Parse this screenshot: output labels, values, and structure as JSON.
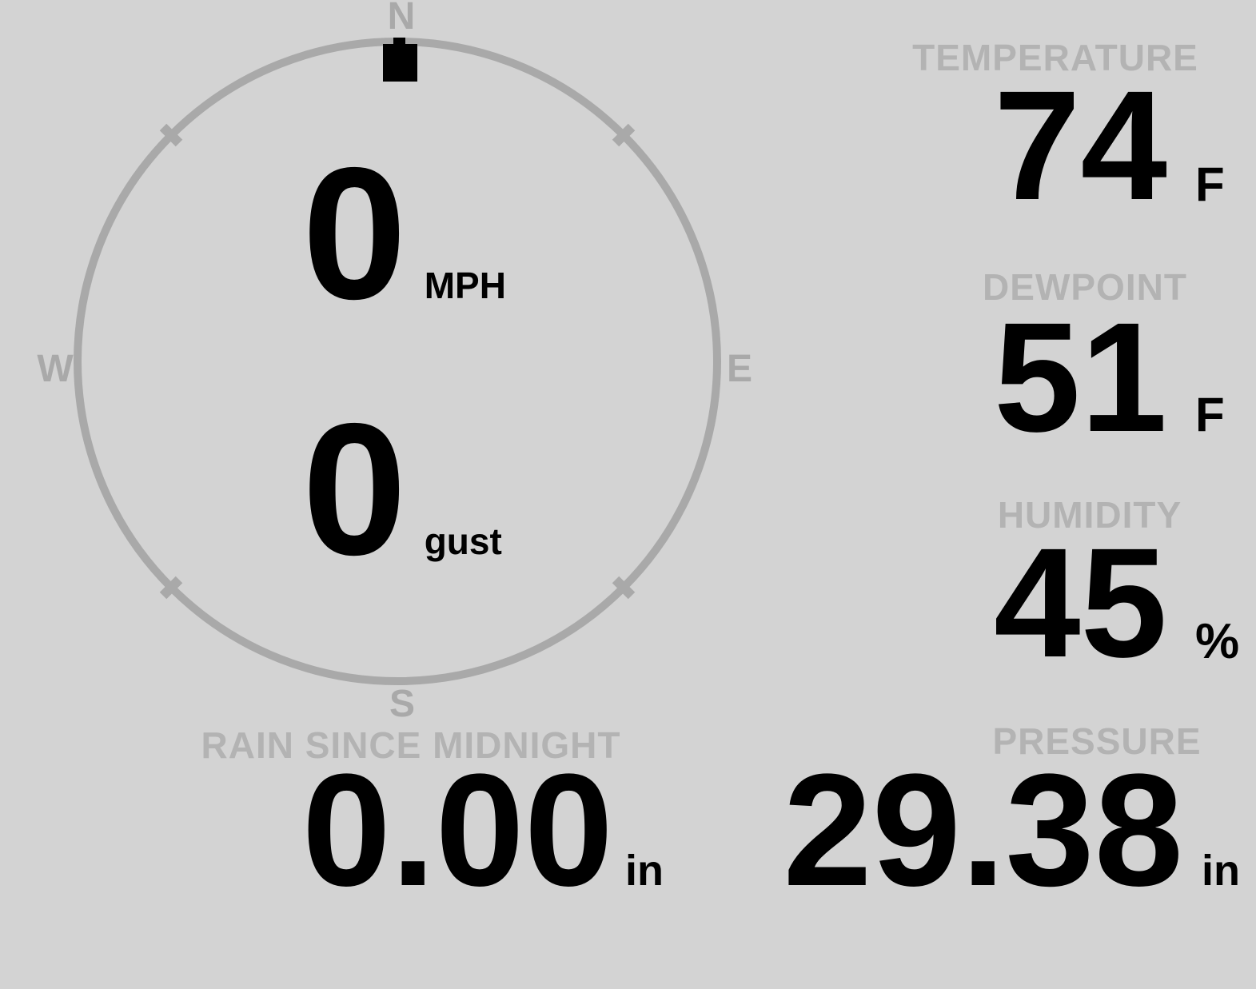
{
  "title": "Weather station display",
  "colors": {
    "background": "#d3d3d3",
    "compass_gray": "#a9a9a9",
    "heading_gray": "#b3b3b3",
    "ink": "#000000"
  },
  "wind": {
    "compass": {
      "north": "N",
      "east": "E",
      "south": "S",
      "west": "W"
    },
    "direction_deg": 0,
    "speed": {
      "value": "0",
      "unit": "MPH"
    },
    "gust": {
      "value": "0",
      "unit": "gust"
    }
  },
  "metrics": {
    "temperature": {
      "label": "TEMPERATURE",
      "value": "74",
      "unit": "F"
    },
    "dewpoint": {
      "label": "DEWPOINT",
      "value": "51",
      "unit": "F"
    },
    "humidity": {
      "label": "HUMIDITY",
      "value": "45",
      "unit": "%"
    },
    "rain_since_midnight": {
      "label": "RAIN SINCE MIDNIGHT",
      "value": "0.00",
      "unit": "in"
    },
    "pressure": {
      "label": "PRESSURE",
      "value": "29.38",
      "unit": "in"
    }
  }
}
